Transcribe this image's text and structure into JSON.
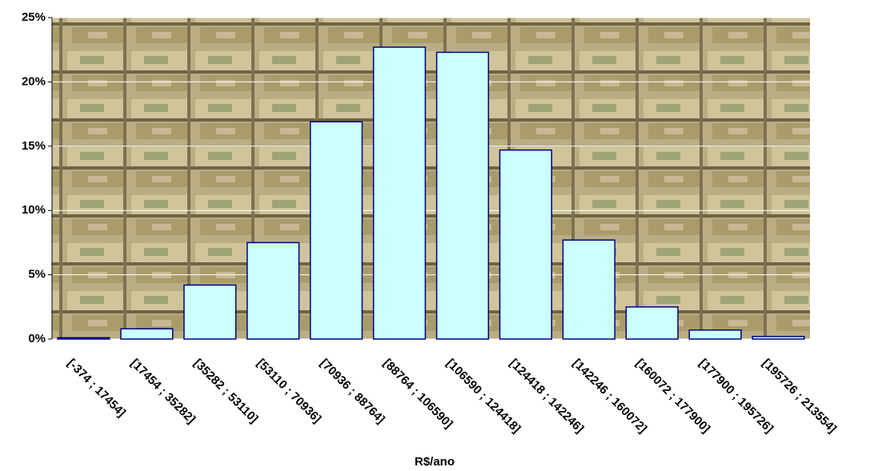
{
  "chart_data": {
    "type": "bar",
    "x_label": "R$/ano",
    "categories": [
      "[-374 ; 17454]",
      "[17454 ; 35282]",
      "[35282 ; 53110]",
      "[53110 ; 70936]",
      "[70936 ; 88764]",
      "[88764 ; 106590]",
      "[106590 ; 124418]",
      "[124418 ; 142246]",
      "[142246 ; 160072]",
      "[160072 ; 177900]",
      "[177900 ; 195726]",
      "[195726 ; 213554]"
    ],
    "values": [
      0.1,
      0.8,
      4.2,
      7.5,
      16.9,
      22.7,
      22.3,
      14.7,
      7.7,
      2.5,
      0.7,
      0.2
    ],
    "color": "#ccffff",
    "ylim": [
      0,
      25
    ],
    "yticks": [
      {
        "value": 0,
        "label": "0%"
      },
      {
        "value": 5,
        "label": "5%"
      },
      {
        "value": 10,
        "label": "10%"
      },
      {
        "value": 15,
        "label": "15%"
      },
      {
        "value": 20,
        "label": "20%"
      },
      {
        "value": 25,
        "label": "25%"
      }
    ],
    "grid": true
  }
}
